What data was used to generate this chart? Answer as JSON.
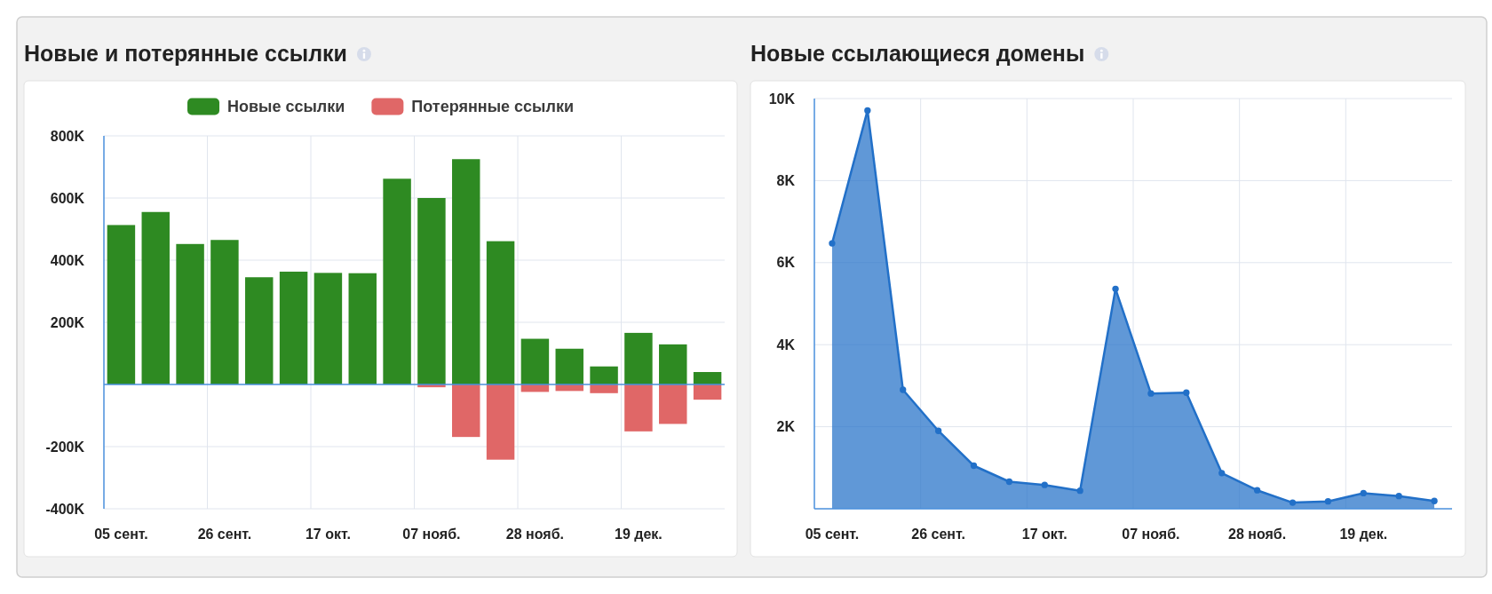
{
  "chart_data": [
    {
      "type": "bar",
      "title": "Новые и потерянные ссылки",
      "categories": [
        "05 сент.",
        null,
        null,
        "26 сент.",
        null,
        null,
        "17 окт.",
        null,
        null,
        "07 нояб.",
        null,
        null,
        "28 нояб.",
        null,
        null,
        "19 дек.",
        null,
        null
      ],
      "series": [
        {
          "name": "Новые ссылки",
          "color": "#2e8a22",
          "values": [
            513000,
            555000,
            452000,
            465000,
            345000,
            363000,
            359000,
            358000,
            662000,
            600000,
            725000,
            461000,
            147000,
            115000,
            58000,
            166000,
            129000,
            40000
          ]
        },
        {
          "name": "Потерянные ссылки",
          "color": "#e06767",
          "values": [
            null,
            null,
            null,
            null,
            null,
            null,
            null,
            null,
            null,
            -9000,
            -169000,
            -242000,
            -24000,
            -21000,
            -28000,
            -151000,
            -127000,
            -49000
          ]
        }
      ],
      "stacked": true,
      "ylim": [
        -400000,
        800000
      ],
      "yticks": [
        {
          "value": 800000,
          "label": "800K"
        },
        {
          "value": 600000,
          "label": "600K"
        },
        {
          "value": 400000,
          "label": "400K"
        },
        {
          "value": 200000,
          "label": "200K"
        },
        {
          "value": -200000,
          "label": "-200K"
        },
        {
          "value": -400000,
          "label": "-400K"
        }
      ],
      "ref_lines": [
        {
          "axis": "y",
          "value": 0,
          "color": "#4a8fdc"
        }
      ],
      "grid": true,
      "legend": "top"
    },
    {
      "type": "area",
      "title": "Новые ссылающиеся домены",
      "categories": [
        "05 сент.",
        null,
        null,
        "26 сент.",
        null,
        null,
        "17 окт.",
        null,
        null,
        "07 нояб.",
        null,
        null,
        "28 нояб.",
        null,
        null,
        "19 дек.",
        null,
        null
      ],
      "series": [
        {
          "color": "#2270c8",
          "values": [
            6470,
            9710,
            2900,
            1900,
            1050,
            660,
            580,
            440,
            5360,
            2810,
            2830,
            870,
            450,
            150,
            180,
            380,
            310,
            190
          ]
        }
      ],
      "ylim": [
        0,
        10000
      ],
      "yticks": [
        {
          "value": 2000,
          "label": "2K"
        },
        {
          "value": 4000,
          "label": "4K"
        },
        {
          "value": 6000,
          "label": "6K"
        },
        {
          "value": 8000,
          "label": "8K"
        },
        {
          "value": 10000,
          "label": "10K"
        }
      ],
      "grid": true,
      "marker": "circle"
    }
  ]
}
